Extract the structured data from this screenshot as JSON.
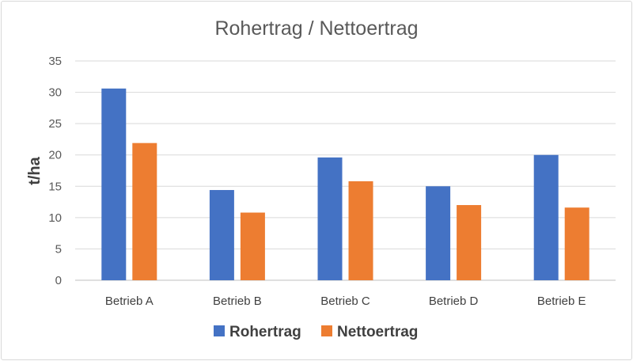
{
  "chart_data": {
    "type": "bar",
    "title": "Rohertrag / Nettoertrag",
    "xlabel": "",
    "ylabel": "t/ha",
    "ylim": [
      0,
      35
    ],
    "yticks": [
      0,
      5,
      10,
      15,
      20,
      25,
      30,
      35
    ],
    "grid": true,
    "legend_position": "bottom",
    "categories": [
      "Betrieb A",
      "Betrieb B",
      "Betrieb C",
      "Betrieb D",
      "Betrieb E"
    ],
    "series": [
      {
        "name": "Rohertrag",
        "color": "#4472c4",
        "values": [
          30.6,
          14.4,
          19.6,
          15.0,
          20.0
        ]
      },
      {
        "name": "Nettoertrag",
        "color": "#ed7d31",
        "values": [
          21.9,
          10.8,
          15.8,
          12.0,
          11.6
        ]
      }
    ]
  }
}
